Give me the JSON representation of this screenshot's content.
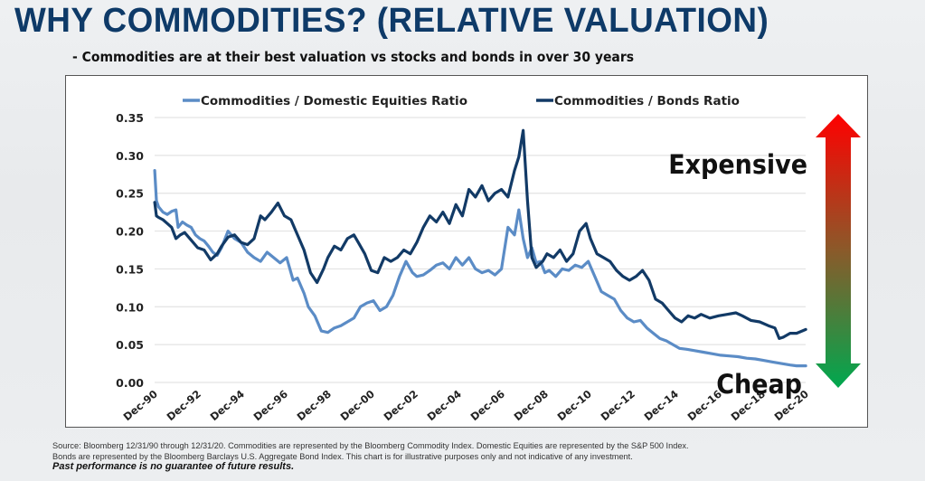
{
  "page": {
    "title": "WHY COMMODITIES? (RELATIVE VALUATION)",
    "subtitle": "- Commodities are at their best valuation vs stocks and bonds in over 30 years"
  },
  "footer": {
    "source_line1": "Source: Bloomberg 12/31/90 through 12/31/20. Commodities are represented by the Bloomberg Commodity Index. Domestic Equities are represented by the S&P 500 Index.",
    "source_line2": "Bonds are represented by the Bloomberg Barclays U.S. Aggregate Bond Index. This chart is for illustrative purposes only and not indicative of any investment.",
    "disclaimer": "Past performance is no guarantee of future results."
  },
  "annotations": {
    "expensive_label": "Expensive",
    "cheap_label": "Cheap",
    "arrow_top_color": "#ff0000",
    "arrow_bottom_color": "#00a84f"
  },
  "chart_data": {
    "type": "line",
    "title": "",
    "xlabel": "",
    "ylabel": "",
    "ylim": [
      0,
      0.35
    ],
    "yticks": [
      "0.00",
      "0.05",
      "0.10",
      "0.15",
      "0.20",
      "0.25",
      "0.30",
      "0.35"
    ],
    "xlim": [
      1990.917,
      2020.917
    ],
    "xticks": [
      "Dec-90",
      "Dec-92",
      "Dec-94",
      "Dec-96",
      "Dec-98",
      "Dec-00",
      "Dec-02",
      "Dec-04",
      "Dec-06",
      "Dec-08",
      "Dec-10",
      "Dec-12",
      "Dec-14",
      "Dec-16",
      "Dec-18",
      "Dec-20"
    ],
    "grid": "horizontal",
    "legend_position": "top",
    "series": [
      {
        "name": "Commodities / Domestic Equities Ratio",
        "color": "#5b8cc6",
        "x": [
          1990.92,
          1991.0,
          1991.1,
          1991.3,
          1991.5,
          1991.7,
          1991.9,
          1992.0,
          1992.2,
          1992.4,
          1992.6,
          1992.8,
          1993.0,
          1993.2,
          1993.4,
          1993.6,
          1993.8,
          1994.0,
          1994.3,
          1994.6,
          1994.9,
          1995.2,
          1995.5,
          1995.8,
          1996.1,
          1996.4,
          1996.7,
          1997.0,
          1997.3,
          1997.5,
          1997.8,
          1998.0,
          1998.3,
          1998.6,
          1998.9,
          1999.2,
          1999.5,
          1999.8,
          2000.1,
          2000.4,
          2000.7,
          2001.0,
          2001.3,
          2001.6,
          2001.9,
          2002.2,
          2002.5,
          2002.8,
          2003.0,
          2003.3,
          2003.6,
          2003.9,
          2004.2,
          2004.5,
          2004.8,
          2005.1,
          2005.4,
          2005.7,
          2006.0,
          2006.3,
          2006.6,
          2006.9,
          2007.2,
          2007.5,
          2007.7,
          2007.9,
          2008.1,
          2008.3,
          2008.5,
          2008.7,
          2008.9,
          2009.1,
          2009.4,
          2009.7,
          2010.0,
          2010.3,
          2010.6,
          2010.9,
          2011.2,
          2011.5,
          2011.8,
          2012.1,
          2012.4,
          2012.7,
          2013.0,
          2013.3,
          2013.6,
          2013.9,
          2014.2,
          2014.5,
          2014.8,
          2015.1,
          2015.4,
          2015.8,
          2016.2,
          2016.6,
          2017.0,
          2017.4,
          2017.8,
          2018.2,
          2018.6,
          2019.0,
          2019.4,
          2019.8,
          2020.2,
          2020.5,
          2020.92
        ],
        "values": [
          0.28,
          0.24,
          0.232,
          0.225,
          0.222,
          0.226,
          0.228,
          0.205,
          0.212,
          0.208,
          0.205,
          0.195,
          0.19,
          0.187,
          0.18,
          0.172,
          0.168,
          0.178,
          0.2,
          0.19,
          0.185,
          0.172,
          0.165,
          0.16,
          0.172,
          0.165,
          0.158,
          0.165,
          0.135,
          0.138,
          0.118,
          0.1,
          0.088,
          0.068,
          0.066,
          0.072,
          0.075,
          0.08,
          0.085,
          0.1,
          0.105,
          0.108,
          0.095,
          0.1,
          0.115,
          0.14,
          0.16,
          0.145,
          0.14,
          0.142,
          0.148,
          0.155,
          0.158,
          0.15,
          0.165,
          0.155,
          0.165,
          0.15,
          0.145,
          0.148,
          0.142,
          0.15,
          0.205,
          0.195,
          0.228,
          0.19,
          0.165,
          0.178,
          0.158,
          0.16,
          0.145,
          0.148,
          0.14,
          0.15,
          0.148,
          0.155,
          0.152,
          0.16,
          0.14,
          0.12,
          0.115,
          0.11,
          0.095,
          0.085,
          0.08,
          0.082,
          0.072,
          0.065,
          0.058,
          0.055,
          0.05,
          0.045,
          0.044,
          0.042,
          0.04,
          0.038,
          0.036,
          0.035,
          0.034,
          0.032,
          0.031,
          0.029,
          0.027,
          0.025,
          0.023,
          0.022,
          0.022
        ]
      },
      {
        "name": "Commodities / Bonds Ratio",
        "color": "#123a66",
        "x": [
          1990.92,
          1991.0,
          1991.1,
          1991.3,
          1991.5,
          1991.7,
          1991.9,
          1992.1,
          1992.3,
          1992.6,
          1992.9,
          1993.2,
          1993.5,
          1993.8,
          1994.0,
          1994.3,
          1994.6,
          1994.9,
          1995.2,
          1995.5,
          1995.8,
          1996.0,
          1996.3,
          1996.6,
          1996.9,
          1997.2,
          1997.5,
          1997.8,
          1998.1,
          1998.4,
          1998.7,
          1998.9,
          1999.2,
          1999.5,
          1999.8,
          2000.1,
          2000.3,
          2000.6,
          2000.9,
          2001.2,
          2001.5,
          2001.8,
          2002.1,
          2002.4,
          2002.7,
          2003.0,
          2003.3,
          2003.6,
          2003.9,
          2004.2,
          2004.5,
          2004.8,
          2005.1,
          2005.4,
          2005.7,
          2006.0,
          2006.3,
          2006.6,
          2006.9,
          2007.2,
          2007.5,
          2007.7,
          2007.9,
          2008.1,
          2008.3,
          2008.5,
          2008.8,
          2009.0,
          2009.3,
          2009.6,
          2009.9,
          2010.2,
          2010.5,
          2010.8,
          2011.0,
          2011.3,
          2011.6,
          2011.9,
          2012.2,
          2012.5,
          2012.8,
          2013.1,
          2013.4,
          2013.7,
          2014.0,
          2014.3,
          2014.6,
          2014.9,
          2015.2,
          2015.5,
          2015.8,
          2016.1,
          2016.5,
          2016.9,
          2017.3,
          2017.7,
          2018.0,
          2018.4,
          2018.8,
          2019.2,
          2019.5,
          2019.7,
          2019.9,
          2020.2,
          2020.5,
          2020.92
        ],
        "values": [
          0.238,
          0.22,
          0.218,
          0.215,
          0.21,
          0.205,
          0.19,
          0.195,
          0.198,
          0.188,
          0.178,
          0.175,
          0.162,
          0.17,
          0.18,
          0.192,
          0.195,
          0.185,
          0.182,
          0.19,
          0.22,
          0.215,
          0.225,
          0.237,
          0.22,
          0.215,
          0.195,
          0.175,
          0.145,
          0.132,
          0.15,
          0.165,
          0.18,
          0.175,
          0.19,
          0.195,
          0.185,
          0.17,
          0.148,
          0.145,
          0.165,
          0.16,
          0.165,
          0.175,
          0.17,
          0.185,
          0.205,
          0.22,
          0.212,
          0.225,
          0.21,
          0.235,
          0.22,
          0.255,
          0.245,
          0.26,
          0.24,
          0.25,
          0.255,
          0.245,
          0.28,
          0.298,
          0.333,
          0.24,
          0.165,
          0.152,
          0.16,
          0.17,
          0.165,
          0.175,
          0.16,
          0.17,
          0.2,
          0.21,
          0.19,
          0.17,
          0.165,
          0.16,
          0.148,
          0.14,
          0.135,
          0.14,
          0.148,
          0.135,
          0.11,
          0.105,
          0.095,
          0.085,
          0.08,
          0.088,
          0.085,
          0.09,
          0.085,
          0.088,
          0.09,
          0.092,
          0.088,
          0.082,
          0.08,
          0.075,
          0.072,
          0.058,
          0.06,
          0.065,
          0.065,
          0.07
        ]
      }
    ]
  }
}
